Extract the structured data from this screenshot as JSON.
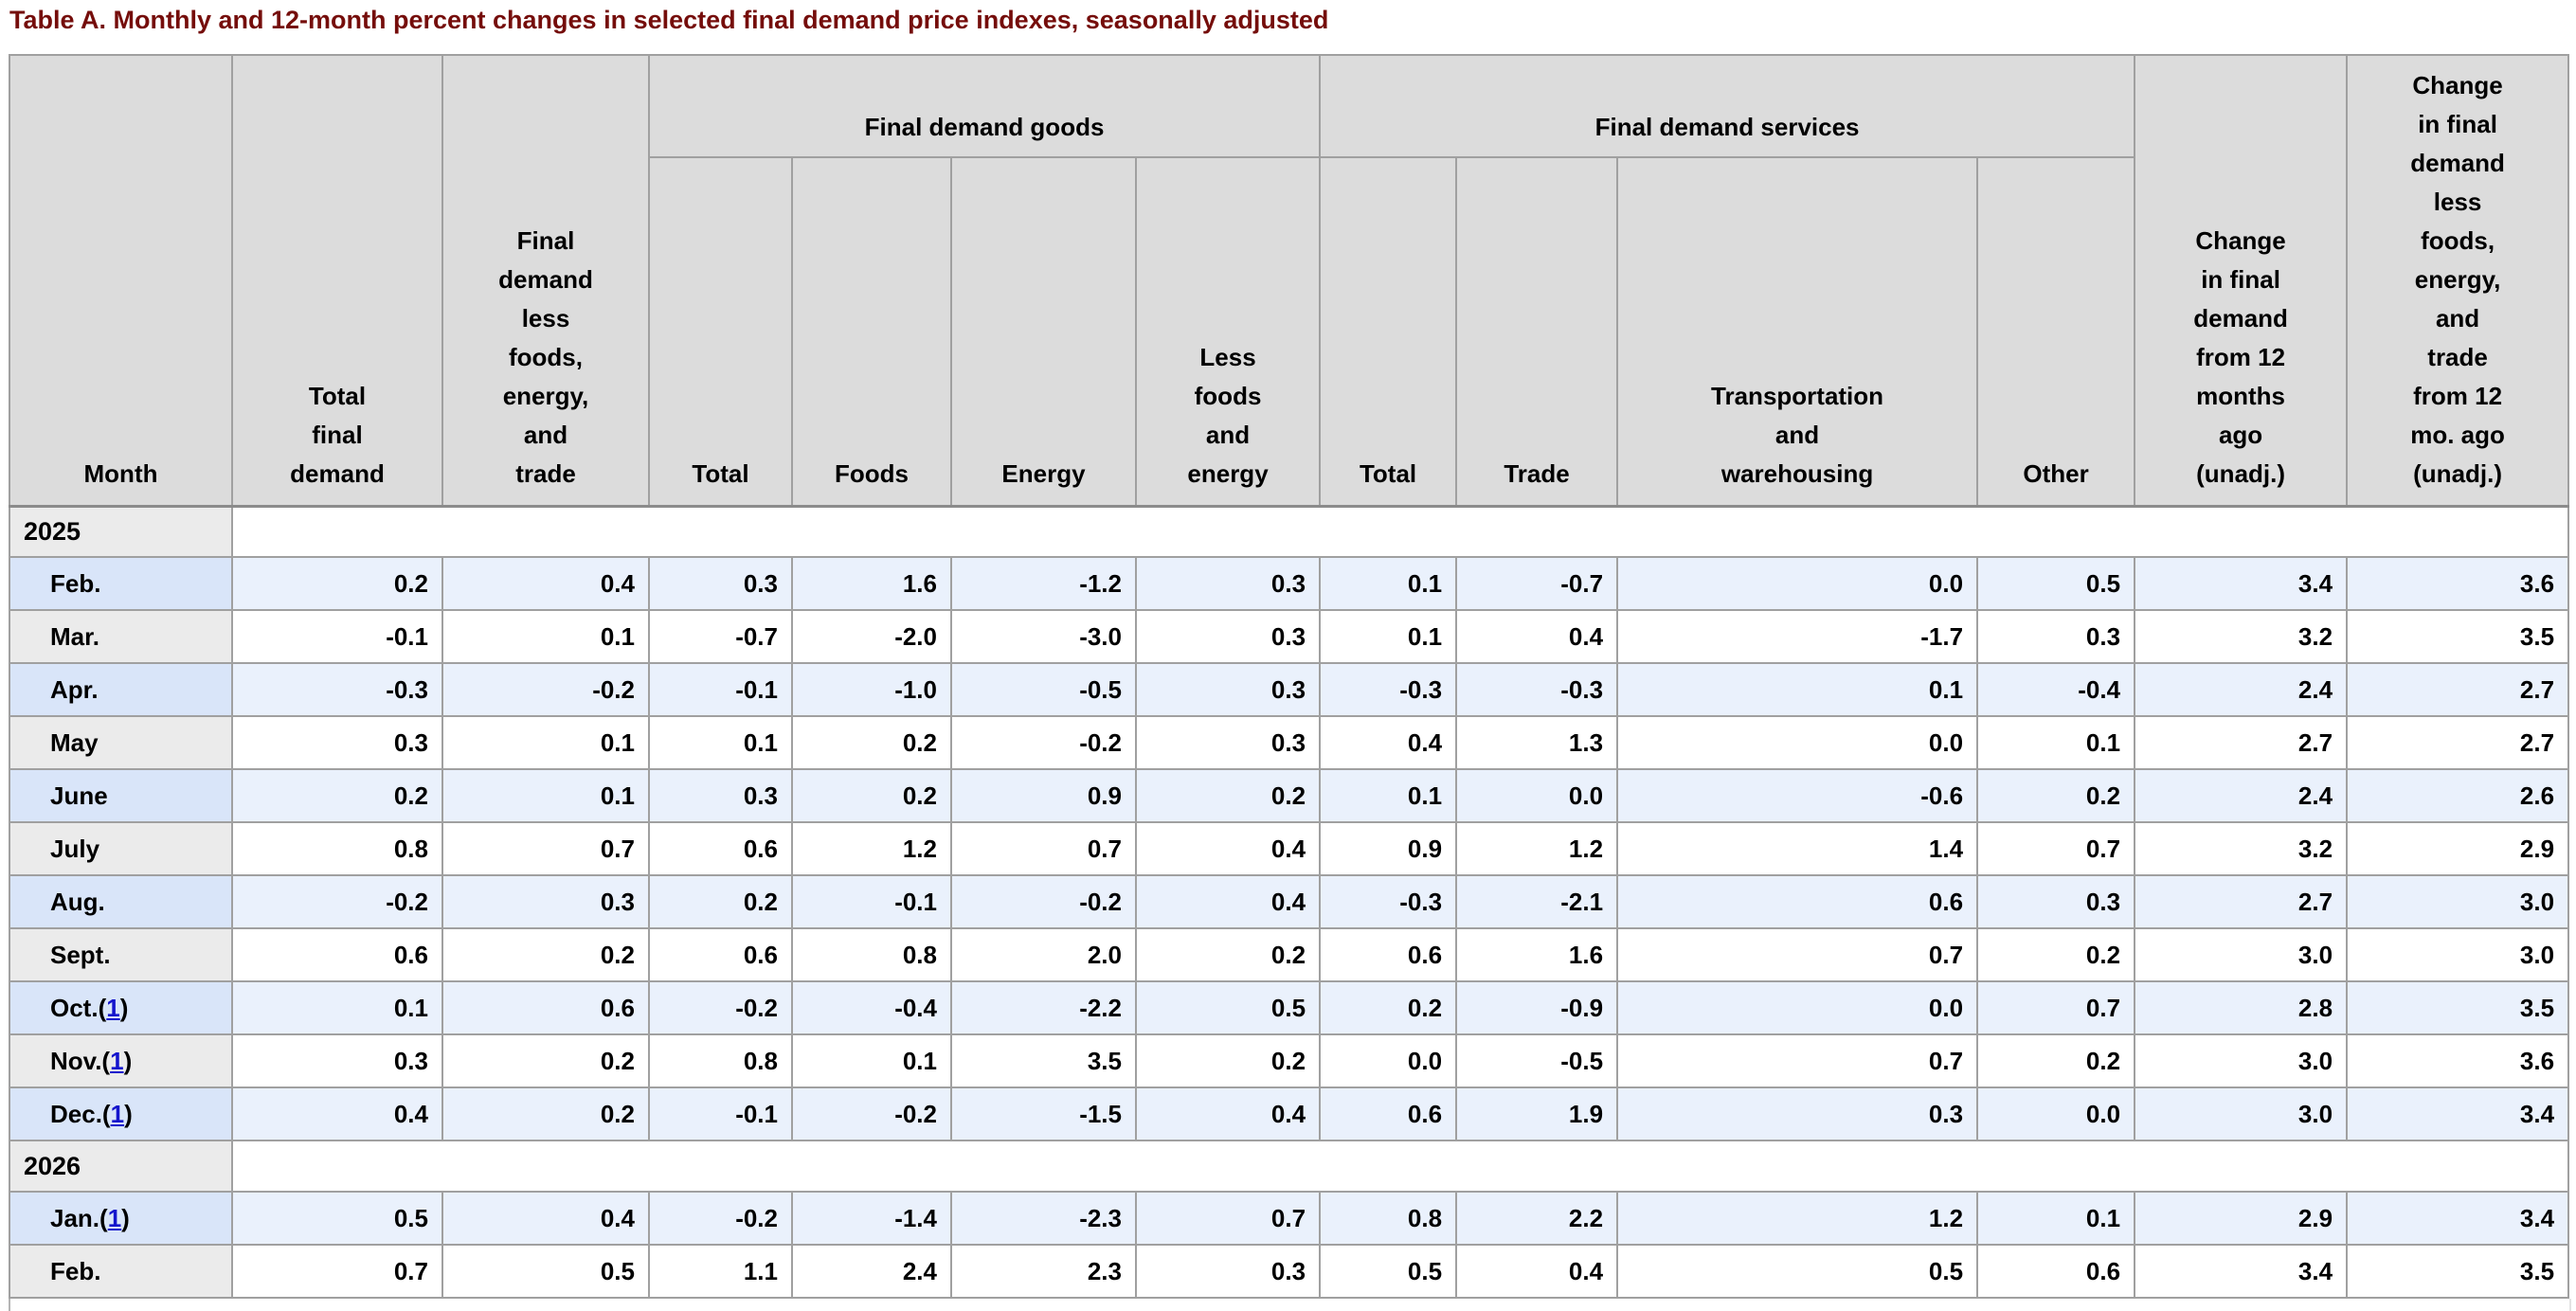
{
  "title": "Table A. Monthly and 12-month percent changes in selected final demand price indexes, seasonally adjusted",
  "table": {
    "group_headers": {
      "goods": "Final demand goods",
      "services": "Final demand services"
    },
    "headers": {
      "month": "Month",
      "total_final_demand": "Total\nfinal\ndemand",
      "fd_less_foods_energy_trade": "Final\ndemand\nless\nfoods,\nenergy,\nand\ntrade",
      "goods_total": "Total",
      "goods_foods": "Foods",
      "goods_energy": "Energy",
      "goods_less_foods_energy": "Less\nfoods\nand\nenergy",
      "services_total": "Total",
      "services_trade": "Trade",
      "services_transportation": "Transportation\nand\nwarehousing",
      "services_other": "Other",
      "change_12mo": "Change\nin final\ndemand\nfrom 12\nmonths\nago\n(unadj.)",
      "change_12mo_less": "Change\nin final\ndemand\nless\nfoods,\nenergy,\nand\ntrade\nfrom 12\nmo. ago\n(unadj.)"
    },
    "footnote_symbol": "1",
    "rows": [
      {
        "type": "year",
        "label": "2025"
      },
      {
        "type": "data",
        "month": "Feb.",
        "footnote": "",
        "shade": "blue",
        "values": [
          "0.2",
          "0.4",
          "0.3",
          "1.6",
          "-1.2",
          "0.3",
          "0.1",
          "-0.7",
          "0.0",
          "0.5",
          "3.4",
          "3.6"
        ]
      },
      {
        "type": "data",
        "month": "Mar.",
        "footnote": "",
        "shade": "white",
        "values": [
          "-0.1",
          "0.1",
          "-0.7",
          "-2.0",
          "-3.0",
          "0.3",
          "0.1",
          "0.4",
          "-1.7",
          "0.3",
          "3.2",
          "3.5"
        ]
      },
      {
        "type": "data",
        "month": "Apr.",
        "footnote": "",
        "shade": "blue",
        "values": [
          "-0.3",
          "-0.2",
          "-0.1",
          "-1.0",
          "-0.5",
          "0.3",
          "-0.3",
          "-0.3",
          "0.1",
          "-0.4",
          "2.4",
          "2.7"
        ]
      },
      {
        "type": "data",
        "month": "May",
        "footnote": "",
        "shade": "white",
        "values": [
          "0.3",
          "0.1",
          "0.1",
          "0.2",
          "-0.2",
          "0.3",
          "0.4",
          "1.3",
          "0.0",
          "0.1",
          "2.7",
          "2.7"
        ]
      },
      {
        "type": "data",
        "month": "June",
        "footnote": "",
        "shade": "blue",
        "values": [
          "0.2",
          "0.1",
          "0.3",
          "0.2",
          "0.9",
          "0.2",
          "0.1",
          "0.0",
          "-0.6",
          "0.2",
          "2.4",
          "2.6"
        ]
      },
      {
        "type": "data",
        "month": "July",
        "footnote": "",
        "shade": "white",
        "values": [
          "0.8",
          "0.7",
          "0.6",
          "1.2",
          "0.7",
          "0.4",
          "0.9",
          "1.2",
          "1.4",
          "0.7",
          "3.2",
          "2.9"
        ]
      },
      {
        "type": "data",
        "month": "Aug.",
        "footnote": "",
        "shade": "blue",
        "values": [
          "-0.2",
          "0.3",
          "0.2",
          "-0.1",
          "-0.2",
          "0.4",
          "-0.3",
          "-2.1",
          "0.6",
          "0.3",
          "2.7",
          "3.0"
        ]
      },
      {
        "type": "data",
        "month": "Sept.",
        "footnote": "",
        "shade": "white",
        "values": [
          "0.6",
          "0.2",
          "0.6",
          "0.8",
          "2.0",
          "0.2",
          "0.6",
          "1.6",
          "0.7",
          "0.2",
          "3.0",
          "3.0"
        ]
      },
      {
        "type": "data",
        "month": "Oct.",
        "footnote": "1",
        "shade": "blue",
        "values": [
          "0.1",
          "0.6",
          "-0.2",
          "-0.4",
          "-2.2",
          "0.5",
          "0.2",
          "-0.9",
          "0.0",
          "0.7",
          "2.8",
          "3.5"
        ]
      },
      {
        "type": "data",
        "month": "Nov.",
        "footnote": "1",
        "shade": "white",
        "values": [
          "0.3",
          "0.2",
          "0.8",
          "0.1",
          "3.5",
          "0.2",
          "0.0",
          "-0.5",
          "0.7",
          "0.2",
          "3.0",
          "3.6"
        ]
      },
      {
        "type": "data",
        "month": "Dec.",
        "footnote": "1",
        "shade": "blue",
        "values": [
          "0.4",
          "0.2",
          "-0.1",
          "-0.2",
          "-1.5",
          "0.4",
          "0.6",
          "1.9",
          "0.3",
          "0.0",
          "3.0",
          "3.4"
        ]
      },
      {
        "type": "year",
        "label": "2026"
      },
      {
        "type": "data",
        "month": "Jan.",
        "footnote": "1",
        "shade": "blue",
        "values": [
          "0.5",
          "0.4",
          "-0.2",
          "-1.4",
          "-2.3",
          "0.7",
          "0.8",
          "2.2",
          "1.2",
          "0.1",
          "2.9",
          "3.4"
        ]
      },
      {
        "type": "data",
        "month": "Feb.",
        "footnote": "",
        "shade": "white",
        "values": [
          "0.7",
          "0.5",
          "1.1",
          "2.4",
          "2.3",
          "0.3",
          "0.5",
          "0.4",
          "0.5",
          "0.6",
          "3.4",
          "3.5"
        ]
      }
    ]
  },
  "colors": {
    "title_text": "#750d0b",
    "header_bg": "#dcdcdc",
    "border": "#a0a0a0",
    "row_blue_bg": "#eaf1fc",
    "month_blue_bg": "#d9e5f9",
    "month_grey_bg": "#ebebeb",
    "footnote_link": "#1414cc"
  }
}
